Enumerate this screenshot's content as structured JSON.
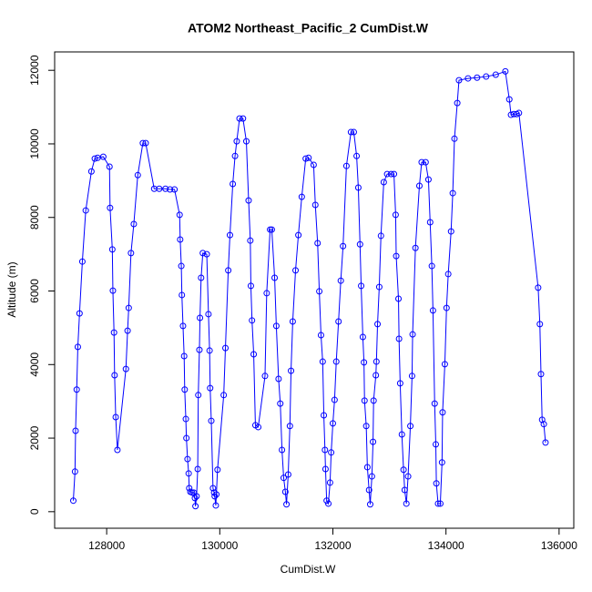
{
  "chart_data": {
    "type": "line",
    "title": "ATOM2 Northeast_Pacific_2 CumDist.W",
    "xlabel": "CumDist.W",
    "ylabel": "Altitude (m)",
    "color": "#0000ff",
    "markers": true,
    "x": [
      127410,
      127440,
      127450,
      127470,
      127490,
      127520,
      127570,
      127630,
      127730,
      127790,
      127840,
      127940,
      128050,
      128060,
      128100,
      128110,
      128130,
      128140,
      128160,
      128190,
      128340,
      128370,
      128390,
      128430,
      128480,
      128550,
      128640,
      128690,
      128840,
      128930,
      129040,
      129120,
      129200,
      129290,
      129300,
      129320,
      129330,
      129350,
      129370,
      129380,
      129400,
      129410,
      129430,
      129450,
      129460,
      129480,
      129510,
      129540,
      129560,
      129570,
      129590,
      129610,
      129620,
      129640,
      129650,
      129670,
      129700,
      129770,
      129800,
      129820,
      129830,
      129850,
      129880,
      129900,
      129910,
      129930,
      129940,
      129960,
      130070,
      130100,
      130150,
      130180,
      130230,
      130270,
      130300,
      130350,
      130410,
      130470,
      130510,
      130540,
      130550,
      130570,
      130600,
      130630,
      130680,
      130800,
      130830,
      130890,
      130920,
      130970,
      131000,
      131040,
      131070,
      131100,
      131130,
      131160,
      131180,
      131210,
      131240,
      131260,
      131290,
      131340,
      131390,
      131450,
      131520,
      131570,
      131660,
      131690,
      131730,
      131760,
      131790,
      131820,
      131840,
      131860,
      131870,
      131890,
      131920,
      131950,
      131970,
      132000,
      132030,
      132060,
      132100,
      132140,
      132180,
      132240,
      132320,
      132370,
      132420,
      132450,
      132480,
      132500,
      132530,
      132550,
      132560,
      132590,
      132610,
      132640,
      132660,
      132690,
      132710,
      132720,
      132760,
      132770,
      132790,
      132820,
      132850,
      132900,
      132960,
      133030,
      133080,
      133110,
      133120,
      133160,
      133170,
      133190,
      133220,
      133250,
      133270,
      133300,
      133330,
      133370,
      133400,
      133410,
      133460,
      133530,
      133570,
      133640,
      133690,
      133720,
      133750,
      133770,
      133800,
      133820,
      133830,
      133860,
      133900,
      133930,
      133940,
      133980,
      134010,
      134040,
      134090,
      134120,
      134150,
      134200,
      134230,
      134390,
      134550,
      134710,
      134880,
      135050,
      135120,
      135150,
      135200,
      135250,
      135290,
      135630,
      135660,
      135680,
      135700,
      135730,
      135760
    ],
    "values": [
      300,
      1090,
      2200,
      3320,
      4480,
      5390,
      6800,
      8190,
      9250,
      9600,
      9620,
      9650,
      9380,
      8260,
      7130,
      6010,
      4870,
      3710,
      2570,
      1680,
      3880,
      4920,
      5540,
      7030,
      7820,
      9150,
      10020,
      10020,
      8780,
      8780,
      8780,
      8760,
      8760,
      8070,
      7400,
      6680,
      5890,
      5050,
      4230,
      3320,
      2520,
      2000,
      1430,
      1040,
      640,
      540,
      520,
      520,
      370,
      150,
      420,
      1160,
      3170,
      4400,
      5270,
      6360,
      7030,
      7000,
      5370,
      4380,
      3360,
      2470,
      640,
      520,
      420,
      170,
      470,
      1140,
      3170,
      4450,
      6560,
      7520,
      8910,
      9670,
      10070,
      10690,
      10690,
      10070,
      8460,
      7370,
      6140,
      5200,
      4280,
      2350,
      2300,
      3690,
      5940,
      7670,
      7670,
      6360,
      5050,
      3610,
      2940,
      1680,
      920,
      540,
      200,
      1010,
      2330,
      3830,
      5170,
      6560,
      7520,
      8560,
      9600,
      9620,
      9430,
      8340,
      7300,
      5990,
      4800,
      4080,
      2620,
      1680,
      1160,
      300,
      220,
      790,
      1610,
      2400,
      3040,
      4080,
      5170,
      6280,
      7220,
      9400,
      10320,
      10320,
      9670,
      8810,
      7270,
      6140,
      4750,
      4060,
      3020,
      2330,
      1210,
      590,
      200,
      960,
      1900,
      3020,
      3710,
      4080,
      5100,
      6110,
      7500,
      8960,
      9180,
      9180,
      9180,
      8070,
      6950,
      5790,
      4700,
      3490,
      2100,
      1140,
      590,
      220,
      960,
      2330,
      3690,
      4820,
      7170,
      8860,
      9500,
      9500,
      9030,
      7870,
      6680,
      5470,
      2940,
      1830,
      770,
      220,
      220,
      1340,
      2700,
      4010,
      5540,
      6460,
      7620,
      8660,
      10140,
      11110,
      11730,
      11780,
      11800,
      11830,
      11880,
      11970,
      11210,
      10790,
      10810,
      10810,
      10840,
      6090,
      5100,
      3740,
      2500,
      2380,
      1880
    ],
    "xlim": [
      127080,
      136260
    ],
    "ylim": [
      -450,
      12500
    ],
    "xticks": [
      128000,
      130000,
      132000,
      134000,
      136000
    ],
    "yticks": [
      0,
      2000,
      4000,
      6000,
      8000,
      10000,
      12000
    ]
  }
}
